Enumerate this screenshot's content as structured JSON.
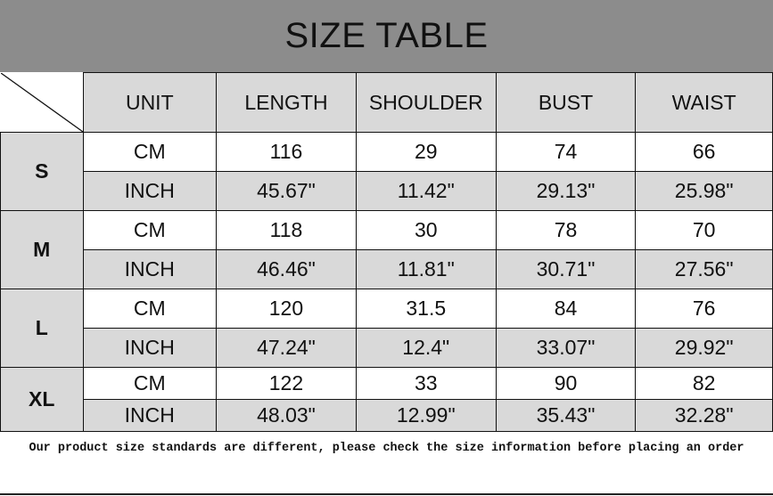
{
  "title": "SIZE TABLE",
  "columns": [
    "UNIT",
    "LENGTH",
    "SHOULDER",
    "BUST",
    "WAIST"
  ],
  "sizes": [
    {
      "size": "S",
      "rows": [
        {
          "unit": "CM",
          "values": [
            "116",
            "29",
            "74",
            "66"
          ]
        },
        {
          "unit": "INCH",
          "values": [
            "45.67\"",
            "11.42\"",
            "29.13\"",
            "25.98\""
          ]
        }
      ]
    },
    {
      "size": "M",
      "rows": [
        {
          "unit": "CM",
          "values": [
            "118",
            "30",
            "78",
            "70"
          ]
        },
        {
          "unit": "INCH",
          "values": [
            "46.46\"",
            "11.81\"",
            "30.71\"",
            "27.56\""
          ]
        }
      ]
    },
    {
      "size": "L",
      "rows": [
        {
          "unit": "CM",
          "values": [
            "120",
            "31.5",
            "84",
            "76"
          ]
        },
        {
          "unit": "INCH",
          "values": [
            "47.24\"",
            "12.4\"",
            "33.07\"",
            "29.92\""
          ]
        }
      ]
    },
    {
      "size": "XL",
      "rows": [
        {
          "unit": "CM",
          "values": [
            "122",
            "33",
            "90",
            "82"
          ]
        },
        {
          "unit": "INCH",
          "values": [
            "48.03\"",
            "12.99\"",
            "35.43\"",
            "32.28\""
          ]
        }
      ]
    }
  ],
  "note": "Our product size standards are different, please check the size information before placing an order",
  "colors": {
    "title_bar": "#8c8c8c",
    "cell_gray": "#d9d9d9"
  }
}
